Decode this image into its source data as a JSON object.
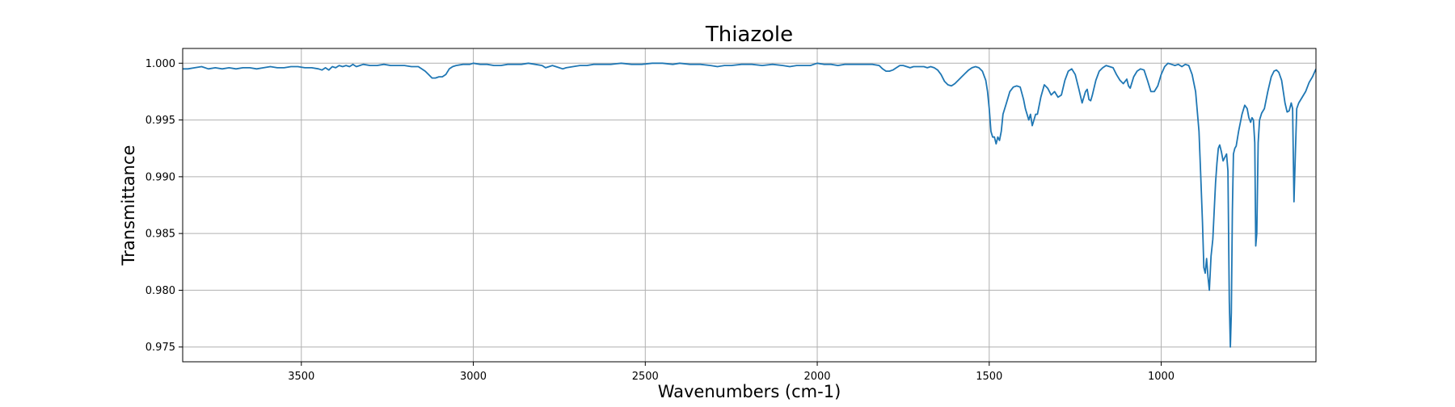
{
  "chart_data": {
    "type": "line",
    "title": "Thiazole",
    "xlabel": "Wavenumbers (cm-1)",
    "ylabel": "Transmittance",
    "xlim": [
      3845,
      550
    ],
    "ylim": [
      0.9737,
      1.0013
    ],
    "x_inverted": true,
    "grid": true,
    "xticks": [
      3500,
      3000,
      2500,
      2000,
      1500,
      1000
    ],
    "xtick_labels": [
      "3500",
      "3000",
      "2500",
      "2000",
      "1500",
      "1000"
    ],
    "yticks": [
      0.975,
      0.98,
      0.985,
      0.99,
      0.995,
      1.0
    ],
    "ytick_labels": [
      "0.975",
      "0.980",
      "0.985",
      "0.990",
      "0.995",
      "1.000"
    ],
    "series": [
      {
        "color": "#1f77b4",
        "points": [
          [
            3845,
            0.9995
          ],
          [
            3830,
            0.9995
          ],
          [
            3810,
            0.9996
          ],
          [
            3790,
            0.9997
          ],
          [
            3770,
            0.9995
          ],
          [
            3750,
            0.9996
          ],
          [
            3730,
            0.9995
          ],
          [
            3710,
            0.9996
          ],
          [
            3690,
            0.9995
          ],
          [
            3670,
            0.9996
          ],
          [
            3650,
            0.9996
          ],
          [
            3630,
            0.9995
          ],
          [
            3610,
            0.9996
          ],
          [
            3590,
            0.9997
          ],
          [
            3570,
            0.9996
          ],
          [
            3550,
            0.9996
          ],
          [
            3530,
            0.9997
          ],
          [
            3510,
            0.9997
          ],
          [
            3490,
            0.9996
          ],
          [
            3470,
            0.9996
          ],
          [
            3450,
            0.9995
          ],
          [
            3440,
            0.9994
          ],
          [
            3430,
            0.9996
          ],
          [
            3420,
            0.9994
          ],
          [
            3410,
            0.9997
          ],
          [
            3400,
            0.9996
          ],
          [
            3390,
            0.9998
          ],
          [
            3380,
            0.9997
          ],
          [
            3370,
            0.9998
          ],
          [
            3360,
            0.9997
          ],
          [
            3350,
            0.9999
          ],
          [
            3340,
            0.9997
          ],
          [
            3330,
            0.9998
          ],
          [
            3320,
            0.9999
          ],
          [
            3300,
            0.9998
          ],
          [
            3280,
            0.9998
          ],
          [
            3260,
            0.9999
          ],
          [
            3240,
            0.9998
          ],
          [
            3220,
            0.9998
          ],
          [
            3200,
            0.9998
          ],
          [
            3180,
            0.9997
          ],
          [
            3160,
            0.9997
          ],
          [
            3150,
            0.9995
          ],
          [
            3140,
            0.9993
          ],
          [
            3130,
            0.999
          ],
          [
            3120,
            0.9987
          ],
          [
            3110,
            0.9987
          ],
          [
            3100,
            0.9988
          ],
          [
            3090,
            0.9988
          ],
          [
            3080,
            0.999
          ],
          [
            3070,
            0.9995
          ],
          [
            3060,
            0.9997
          ],
          [
            3050,
            0.9998
          ],
          [
            3030,
            0.9999
          ],
          [
            3010,
            0.9999
          ],
          [
            3000,
            1.0
          ],
          [
            2980,
            0.9999
          ],
          [
            2960,
            0.9999
          ],
          [
            2940,
            0.9998
          ],
          [
            2920,
            0.9998
          ],
          [
            2900,
            0.9999
          ],
          [
            2880,
            0.9999
          ],
          [
            2860,
            0.9999
          ],
          [
            2840,
            1.0
          ],
          [
            2820,
            0.9999
          ],
          [
            2800,
            0.9998
          ],
          [
            2790,
            0.9996
          ],
          [
            2780,
            0.9997
          ],
          [
            2770,
            0.9998
          ],
          [
            2760,
            0.9997
          ],
          [
            2750,
            0.9996
          ],
          [
            2740,
            0.9995
          ],
          [
            2730,
            0.9996
          ],
          [
            2710,
            0.9997
          ],
          [
            2690,
            0.9998
          ],
          [
            2670,
            0.9998
          ],
          [
            2650,
            0.9999
          ],
          [
            2620,
            0.9999
          ],
          [
            2600,
            0.9999
          ],
          [
            2570,
            1.0
          ],
          [
            2540,
            0.9999
          ],
          [
            2510,
            0.9999
          ],
          [
            2480,
            1.0
          ],
          [
            2450,
            1.0
          ],
          [
            2420,
            0.9999
          ],
          [
            2400,
            1.0
          ],
          [
            2370,
            0.9999
          ],
          [
            2340,
            0.9999
          ],
          [
            2310,
            0.9998
          ],
          [
            2290,
            0.9997
          ],
          [
            2270,
            0.9998
          ],
          [
            2250,
            0.9998
          ],
          [
            2220,
            0.9999
          ],
          [
            2190,
            0.9999
          ],
          [
            2160,
            0.9998
          ],
          [
            2130,
            0.9999
          ],
          [
            2100,
            0.9998
          ],
          [
            2080,
            0.9997
          ],
          [
            2060,
            0.9998
          ],
          [
            2040,
            0.9998
          ],
          [
            2020,
            0.9998
          ],
          [
            2000,
            1.0
          ],
          [
            1980,
            0.9999
          ],
          [
            1960,
            0.9999
          ],
          [
            1940,
            0.9998
          ],
          [
            1920,
            0.9999
          ],
          [
            1900,
            0.9999
          ],
          [
            1880,
            0.9999
          ],
          [
            1860,
            0.9999
          ],
          [
            1840,
            0.9999
          ],
          [
            1820,
            0.9998
          ],
          [
            1810,
            0.9995
          ],
          [
            1800,
            0.9993
          ],
          [
            1790,
            0.9993
          ],
          [
            1780,
            0.9994
          ],
          [
            1770,
            0.9996
          ],
          [
            1760,
            0.9998
          ],
          [
            1750,
            0.9998
          ],
          [
            1740,
            0.9997
          ],
          [
            1730,
            0.9996
          ],
          [
            1720,
            0.9997
          ],
          [
            1700,
            0.9997
          ],
          [
            1690,
            0.9997
          ],
          [
            1680,
            0.9996
          ],
          [
            1670,
            0.9997
          ],
          [
            1660,
            0.9996
          ],
          [
            1650,
            0.9994
          ],
          [
            1640,
            0.999
          ],
          [
            1630,
            0.9984
          ],
          [
            1620,
            0.9981
          ],
          [
            1610,
            0.998
          ],
          [
            1600,
            0.9982
          ],
          [
            1590,
            0.9985
          ],
          [
            1580,
            0.9988
          ],
          [
            1570,
            0.9991
          ],
          [
            1560,
            0.9994
          ],
          [
            1550,
            0.9996
          ],
          [
            1540,
            0.9997
          ],
          [
            1530,
            0.9996
          ],
          [
            1520,
            0.9993
          ],
          [
            1510,
            0.9985
          ],
          [
            1505,
            0.9975
          ],
          [
            1500,
            0.996
          ],
          [
            1495,
            0.994
          ],
          [
            1490,
            0.9935
          ],
          [
            1485,
            0.9935
          ],
          [
            1480,
            0.9929
          ],
          [
            1475,
            0.9935
          ],
          [
            1470,
            0.9932
          ],
          [
            1465,
            0.994
          ],
          [
            1460,
            0.9955
          ],
          [
            1450,
            0.9965
          ],
          [
            1440,
            0.9975
          ],
          [
            1430,
            0.9979
          ],
          [
            1420,
            0.998
          ],
          [
            1410,
            0.9979
          ],
          [
            1400,
            0.9968
          ],
          [
            1395,
            0.996
          ],
          [
            1390,
            0.9955
          ],
          [
            1385,
            0.995
          ],
          [
            1380,
            0.9955
          ],
          [
            1375,
            0.9945
          ],
          [
            1370,
            0.995
          ],
          [
            1365,
            0.9955
          ],
          [
            1360,
            0.9955
          ],
          [
            1350,
            0.997
          ],
          [
            1340,
            0.9981
          ],
          [
            1330,
            0.9978
          ],
          [
            1320,
            0.9972
          ],
          [
            1310,
            0.9975
          ],
          [
            1300,
            0.997
          ],
          [
            1290,
            0.9972
          ],
          [
            1280,
            0.9985
          ],
          [
            1270,
            0.9993
          ],
          [
            1260,
            0.9995
          ],
          [
            1250,
            0.999
          ],
          [
            1240,
            0.9978
          ],
          [
            1230,
            0.9965
          ],
          [
            1220,
            0.9975
          ],
          [
            1215,
            0.9977
          ],
          [
            1210,
            0.9968
          ],
          [
            1205,
            0.9967
          ],
          [
            1200,
            0.9972
          ],
          [
            1190,
            0.9985
          ],
          [
            1180,
            0.9993
          ],
          [
            1170,
            0.9996
          ],
          [
            1160,
            0.9998
          ],
          [
            1150,
            0.9997
          ],
          [
            1140,
            0.9996
          ],
          [
            1130,
            0.999
          ],
          [
            1120,
            0.9985
          ],
          [
            1110,
            0.9982
          ],
          [
            1100,
            0.9986
          ],
          [
            1095,
            0.998
          ],
          [
            1090,
            0.9978
          ],
          [
            1080,
            0.9988
          ],
          [
            1070,
            0.9993
          ],
          [
            1060,
            0.9995
          ],
          [
            1050,
            0.9994
          ],
          [
            1040,
            0.9985
          ],
          [
            1030,
            0.9975
          ],
          [
            1020,
            0.9975
          ],
          [
            1010,
            0.998
          ],
          [
            1000,
            0.999
          ],
          [
            990,
            0.9997
          ],
          [
            980,
            1.0
          ],
          [
            970,
            0.9999
          ],
          [
            960,
            0.9998
          ],
          [
            950,
            0.9999
          ],
          [
            940,
            0.9997
          ],
          [
            930,
            0.9999
          ],
          [
            920,
            0.9998
          ],
          [
            910,
            0.999
          ],
          [
            900,
            0.9975
          ],
          [
            890,
            0.994
          ],
          [
            885,
            0.99
          ],
          [
            880,
            0.986
          ],
          [
            876,
            0.982
          ],
          [
            872,
            0.9815
          ],
          [
            868,
            0.9828
          ],
          [
            864,
            0.9812
          ],
          [
            860,
            0.98
          ],
          [
            855,
            0.983
          ],
          [
            850,
            0.9845
          ],
          [
            846,
            0.987
          ],
          [
            842,
            0.9895
          ],
          [
            838,
            0.9912
          ],
          [
            834,
            0.9925
          ],
          [
            830,
            0.9928
          ],
          [
            825,
            0.9922
          ],
          [
            820,
            0.9914
          ],
          [
            815,
            0.9917
          ],
          [
            810,
            0.992
          ],
          [
            806,
            0.9905
          ],
          [
            802,
            0.979
          ],
          [
            799,
            0.975
          ],
          [
            796,
            0.978
          ],
          [
            793,
            0.987
          ],
          [
            790,
            0.992
          ],
          [
            786,
            0.9925
          ],
          [
            782,
            0.9927
          ],
          [
            775,
            0.994
          ],
          [
            765,
            0.9955
          ],
          [
            757,
            0.9963
          ],
          [
            750,
            0.996
          ],
          [
            745,
            0.9952
          ],
          [
            740,
            0.9948
          ],
          [
            736,
            0.9952
          ],
          [
            732,
            0.995
          ],
          [
            728,
            0.993
          ],
          [
            725,
            0.9839
          ],
          [
            722,
            0.985
          ],
          [
            718,
            0.993
          ],
          [
            714,
            0.995
          ],
          [
            708,
            0.9956
          ],
          [
            700,
            0.996
          ],
          [
            690,
            0.9975
          ],
          [
            680,
            0.9988
          ],
          [
            672,
            0.9993
          ],
          [
            665,
            0.9994
          ],
          [
            658,
            0.9992
          ],
          [
            650,
            0.9985
          ],
          [
            645,
            0.9975
          ],
          [
            640,
            0.9965
          ],
          [
            634,
            0.9957
          ],
          [
            628,
            0.9958
          ],
          [
            622,
            0.9965
          ],
          [
            618,
            0.996
          ],
          [
            614,
            0.9878
          ],
          [
            610,
            0.992
          ],
          [
            606,
            0.996
          ],
          [
            600,
            0.9965
          ],
          [
            590,
            0.997
          ],
          [
            580,
            0.9975
          ],
          [
            570,
            0.9983
          ],
          [
            560,
            0.9988
          ],
          [
            550,
            0.9995
          ]
        ]
      }
    ]
  }
}
